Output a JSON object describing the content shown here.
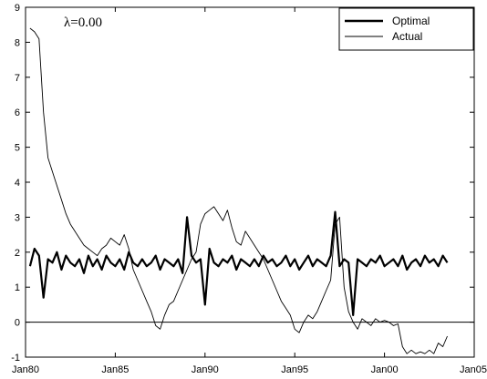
{
  "chart_data": {
    "type": "line",
    "title": "",
    "xlabel": "",
    "ylabel": "",
    "annotation": "λ=0.00",
    "xlim": [
      1980,
      2005
    ],
    "ylim": [
      -1,
      9
    ],
    "x_ticks": [
      {
        "value": 1980,
        "label": "Jan80"
      },
      {
        "value": 1985,
        "label": "Jan85"
      },
      {
        "value": 1990,
        "label": "Jan90"
      },
      {
        "value": 1995,
        "label": "Jan95"
      },
      {
        "value": 2000,
        "label": "Jan00"
      },
      {
        "value": 2005,
        "label": "Jan05"
      }
    ],
    "y_ticks": [
      {
        "value": -1,
        "label": "-1"
      },
      {
        "value": 0,
        "label": "0"
      },
      {
        "value": 1,
        "label": "1"
      },
      {
        "value": 2,
        "label": "2"
      },
      {
        "value": 3,
        "label": "3"
      },
      {
        "value": 4,
        "label": "4"
      },
      {
        "value": 5,
        "label": "5"
      },
      {
        "value": 6,
        "label": "6"
      },
      {
        "value": 7,
        "label": "7"
      },
      {
        "value": 8,
        "label": "8"
      },
      {
        "value": 9,
        "label": "9"
      }
    ],
    "reference_line_y": 0,
    "grid": false,
    "legend_position": "top-right",
    "series": [
      {
        "name": "Optimal",
        "style": "thick",
        "x": [
          1980.25,
          1980.5,
          1980.75,
          1981.0,
          1981.25,
          1981.5,
          1981.75,
          1982.0,
          1982.25,
          1982.5,
          1982.75,
          1983.0,
          1983.25,
          1983.5,
          1983.75,
          1984.0,
          1984.25,
          1984.5,
          1984.75,
          1985.0,
          1985.25,
          1985.5,
          1985.75,
          1986.0,
          1986.25,
          1986.5,
          1986.75,
          1987.0,
          1987.25,
          1987.5,
          1987.75,
          1988.0,
          1988.25,
          1988.5,
          1988.75,
          1989.0,
          1989.25,
          1989.5,
          1989.75,
          1990.0,
          1990.25,
          1990.5,
          1990.75,
          1991.0,
          1991.25,
          1991.5,
          1991.75,
          1992.0,
          1992.25,
          1992.5,
          1992.75,
          1993.0,
          1993.25,
          1993.5,
          1993.75,
          1994.0,
          1994.25,
          1994.5,
          1994.75,
          1995.0,
          1995.25,
          1995.5,
          1995.75,
          1996.0,
          1996.25,
          1996.5,
          1996.75,
          1997.0,
          1997.25,
          1997.5,
          1997.75,
          1998.0,
          1998.25,
          1998.5,
          1998.75,
          1999.0,
          1999.25,
          1999.5,
          1999.75,
          2000.0,
          2000.25,
          2000.5,
          2000.75,
          2001.0,
          2001.25,
          2001.5,
          2001.75,
          2002.0,
          2002.25,
          2002.5,
          2002.75,
          2003.0,
          2003.25,
          2003.5
        ],
        "y": [
          1.6,
          2.1,
          1.9,
          0.7,
          1.8,
          1.7,
          2.0,
          1.5,
          1.9,
          1.7,
          1.6,
          1.8,
          1.4,
          1.9,
          1.6,
          1.8,
          1.5,
          1.9,
          1.7,
          1.6,
          1.8,
          1.5,
          2.0,
          1.7,
          1.6,
          1.8,
          1.6,
          1.7,
          1.9,
          1.5,
          1.8,
          1.7,
          1.6,
          1.8,
          1.4,
          3.0,
          1.9,
          1.7,
          1.8,
          0.5,
          2.1,
          1.7,
          1.6,
          1.8,
          1.7,
          1.9,
          1.5,
          1.8,
          1.7,
          1.6,
          1.8,
          1.6,
          1.9,
          1.7,
          1.8,
          1.6,
          1.7,
          1.9,
          1.6,
          1.8,
          1.5,
          1.7,
          1.9,
          1.6,
          1.8,
          1.7,
          1.6,
          1.9,
          3.15,
          1.6,
          1.8,
          1.7,
          0.2,
          1.8,
          1.7,
          1.6,
          1.8,
          1.7,
          1.9,
          1.6,
          1.7,
          1.8,
          1.6,
          1.9,
          1.5,
          1.7,
          1.8,
          1.6,
          1.9,
          1.7,
          1.8,
          1.6,
          1.9,
          1.7
        ]
      },
      {
        "name": "Actual",
        "style": "thin",
        "x": [
          1980.25,
          1980.5,
          1980.75,
          1981.0,
          1981.25,
          1981.5,
          1981.75,
          1982.0,
          1982.25,
          1982.5,
          1982.75,
          1983.0,
          1983.25,
          1983.5,
          1983.75,
          1984.0,
          1984.25,
          1984.5,
          1984.75,
          1985.0,
          1985.25,
          1985.5,
          1985.75,
          1986.0,
          1986.25,
          1986.5,
          1986.75,
          1987.0,
          1987.25,
          1987.5,
          1987.75,
          1988.0,
          1988.25,
          1988.5,
          1988.75,
          1989.0,
          1989.25,
          1989.5,
          1989.75,
          1990.0,
          1990.25,
          1990.5,
          1990.75,
          1991.0,
          1991.25,
          1991.5,
          1991.75,
          1992.0,
          1992.25,
          1992.5,
          1992.75,
          1993.0,
          1993.25,
          1993.5,
          1993.75,
          1994.0,
          1994.25,
          1994.5,
          1994.75,
          1995.0,
          1995.25,
          1995.5,
          1995.75,
          1996.0,
          1996.25,
          1996.5,
          1996.75,
          1997.0,
          1997.25,
          1997.5,
          1997.75,
          1998.0,
          1998.25,
          1998.5,
          1998.75,
          1999.0,
          1999.25,
          1999.5,
          1999.75,
          2000.0,
          2000.25,
          2000.5,
          2000.75,
          2001.0,
          2001.25,
          2001.5,
          2001.75,
          2002.0,
          2002.25,
          2002.5,
          2002.75,
          2003.0,
          2003.25,
          2003.5
        ],
        "y": [
          8.4,
          8.3,
          8.1,
          6.0,
          4.7,
          4.3,
          3.9,
          3.5,
          3.1,
          2.8,
          2.6,
          2.4,
          2.2,
          2.1,
          2.0,
          1.9,
          2.1,
          2.2,
          2.4,
          2.3,
          2.2,
          2.5,
          2.1,
          1.5,
          1.2,
          0.9,
          0.6,
          0.3,
          -0.1,
          -0.2,
          0.2,
          0.5,
          0.6,
          0.9,
          1.2,
          1.5,
          1.8,
          2.0,
          2.8,
          3.1,
          3.2,
          3.3,
          3.1,
          2.9,
          3.2,
          2.7,
          2.3,
          2.2,
          2.6,
          2.4,
          2.2,
          2.0,
          1.8,
          1.5,
          1.2,
          0.9,
          0.6,
          0.4,
          0.2,
          -0.2,
          -0.3,
          0.0,
          0.2,
          0.1,
          0.3,
          0.6,
          0.9,
          1.2,
          2.8,
          3.0,
          1.0,
          0.3,
          0.0,
          -0.2,
          0.1,
          0.0,
          -0.1,
          0.1,
          0.0,
          0.05,
          0.0,
          -0.1,
          -0.05,
          -0.7,
          -0.9,
          -0.8,
          -0.9,
          -0.85,
          -0.9,
          -0.8,
          -0.9,
          -0.6,
          -0.7,
          -0.4
        ]
      }
    ]
  }
}
